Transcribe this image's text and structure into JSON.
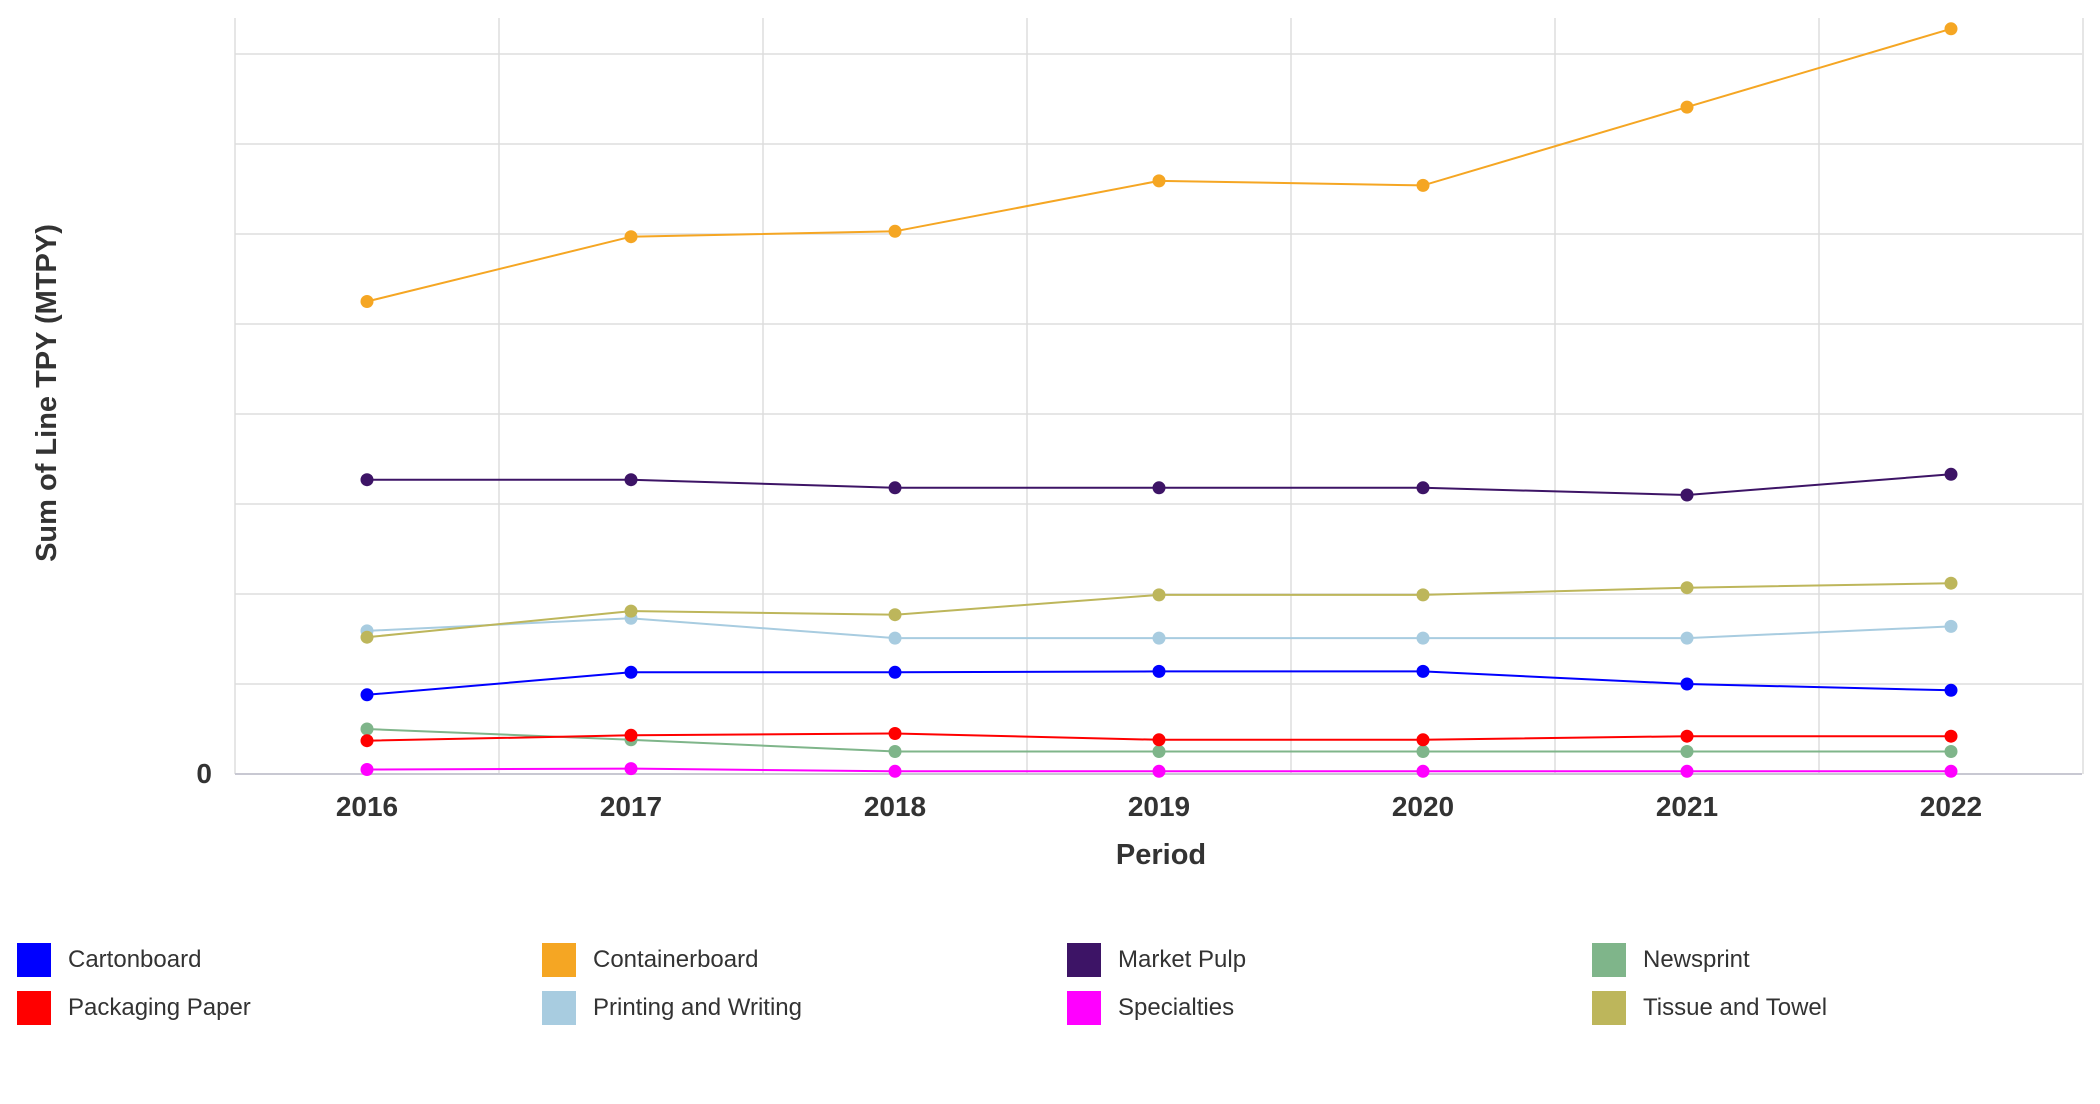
{
  "chart_data": {
    "type": "line",
    "xlabel": "Period",
    "ylabel": "Sum of Line TPY (MTPY)",
    "x": [
      "2016",
      "2017",
      "2018",
      "2019",
      "2020",
      "2021",
      "2022"
    ],
    "y_tick_labels": [
      "0"
    ],
    "ylim": [
      0,
      84
    ],
    "y_grid_step": 10,
    "grid": true,
    "legend_position": "bottom",
    "series": [
      {
        "name": "Cartonboard",
        "color": "#0000ff",
        "values": [
          8.8,
          11.3,
          11.3,
          11.4,
          11.4,
          10.0,
          9.3
        ]
      },
      {
        "name": "Containerboard",
        "color": "#f5a623",
        "values": [
          52.5,
          59.7,
          60.3,
          65.9,
          65.4,
          74.1,
          82.8
        ]
      },
      {
        "name": "Market Pulp",
        "color": "#3d1466",
        "values": [
          32.7,
          32.7,
          31.8,
          31.8,
          31.8,
          31.0,
          33.3
        ]
      },
      {
        "name": "Newsprint",
        "color": "#7fb58a",
        "values": [
          5.0,
          3.8,
          2.5,
          2.5,
          2.5,
          2.5,
          2.5
        ]
      },
      {
        "name": "Packaging Paper",
        "color": "#ff0000",
        "values": [
          3.7,
          4.3,
          4.5,
          3.8,
          3.8,
          4.2,
          4.2
        ]
      },
      {
        "name": "Printing and Writing",
        "color": "#a8cce0",
        "values": [
          15.9,
          17.3,
          15.1,
          15.1,
          15.1,
          15.1,
          16.4
        ]
      },
      {
        "name": "Specialties",
        "color": "#ff00ff",
        "values": [
          0.5,
          0.6,
          0.3,
          0.3,
          0.3,
          0.3,
          0.3
        ]
      },
      {
        "name": "Tissue and Towel",
        "color": "#bdb65b",
        "values": [
          15.2,
          18.1,
          17.7,
          19.9,
          19.9,
          20.7,
          21.2
        ]
      }
    ]
  }
}
